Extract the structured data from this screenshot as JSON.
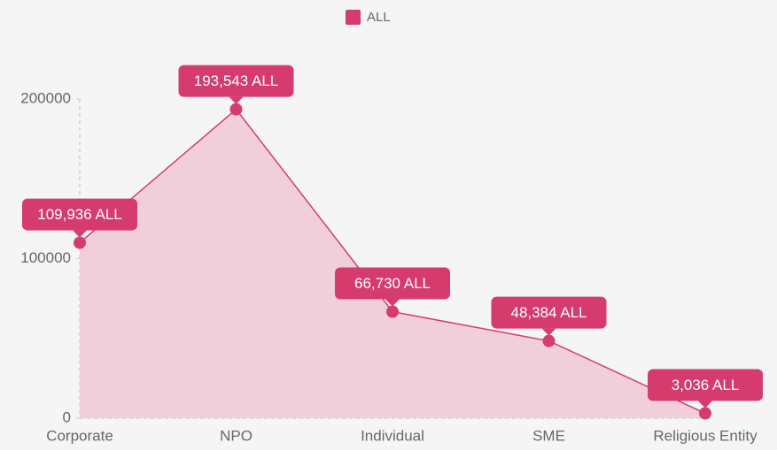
{
  "chart_data": {
    "type": "area",
    "categories": [
      "Corporate",
      "NPO",
      "Individual",
      "SME",
      "Religious Entity"
    ],
    "series": [
      {
        "name": "ALL",
        "color": "#d63b6e",
        "fill": "#f0cfda",
        "values": [
          109936,
          193543,
          66730,
          48384,
          3036
        ],
        "value_labels": [
          "109,936 ALL",
          "193,543 ALL",
          "66,730 ALL",
          "48,384 ALL",
          "3,036 ALL"
        ]
      }
    ],
    "ylim": [
      0,
      200000
    ],
    "yticks": [
      0,
      100000,
      200000
    ],
    "grid": false,
    "legend": "top"
  }
}
